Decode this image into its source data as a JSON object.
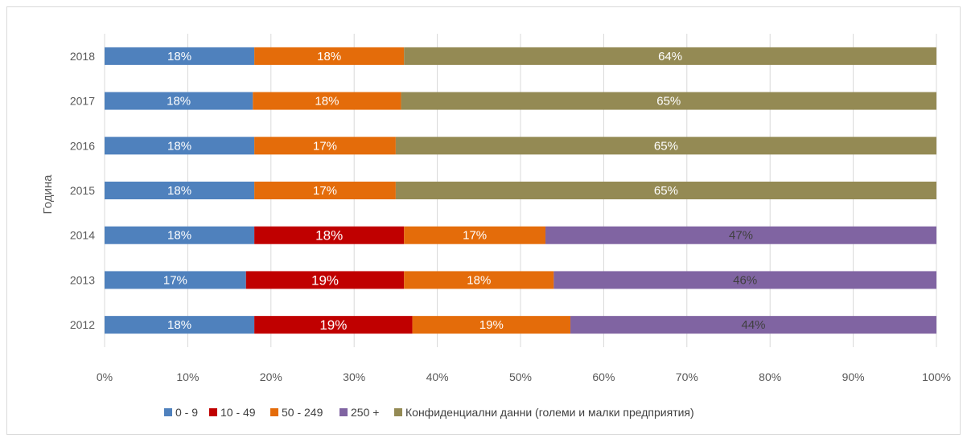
{
  "chart_data": {
    "type": "bar",
    "orientation": "horizontal",
    "stacked": "percent",
    "title": "",
    "ylabel": "Година",
    "xlabel": "",
    "categories": [
      "2018",
      "2017",
      "2016",
      "2015",
      "2014",
      "2013",
      "2012"
    ],
    "x_ticks": [
      "0%",
      "10%",
      "20%",
      "30%",
      "40%",
      "50%",
      "60%",
      "70%",
      "80%",
      "90%",
      "100%"
    ],
    "xlim": [
      0,
      100
    ],
    "grid": true,
    "legend_position": "bottom",
    "series": [
      {
        "name": "0 - 9",
        "color": "#4f81bd",
        "values": [
          18,
          18,
          18,
          18,
          18,
          17,
          18
        ],
        "labels": [
          "18%",
          "18%",
          "18%",
          "18%",
          "18%",
          "17%",
          "18%"
        ],
        "label_color": "#ffffff"
      },
      {
        "name": "10 - 49",
        "color": "#c00000",
        "values": [
          0,
          0,
          0,
          0,
          18,
          19,
          19
        ],
        "labels": [
          "",
          "",
          "",
          "",
          "18%",
          "19%",
          "19%"
        ],
        "label_color": "#ffffff"
      },
      {
        "name": "50 - 249",
        "color": "#e46c0a",
        "values": [
          18,
          18,
          17,
          17,
          17,
          18,
          19
        ],
        "labels": [
          "18%",
          "18%",
          "17%",
          "17%",
          "17%",
          "18%",
          "19%"
        ],
        "label_color": "#ffffff"
      },
      {
        "name": "250 +",
        "color": "#8064a2",
        "values": [
          0,
          0,
          0,
          0,
          47,
          46,
          44
        ],
        "labels": [
          "",
          "",
          "",
          "",
          "47%",
          "46%",
          "44%"
        ],
        "label_color": "#404040"
      },
      {
        "name": "Конфиденциални данни (големи и малки предприятия)",
        "color": "#948a54",
        "values": [
          64,
          65,
          65,
          65,
          0,
          0,
          0
        ],
        "labels": [
          "64%",
          "65%",
          "65%",
          "65%",
          "",
          "",
          ""
        ],
        "label_color": "#ffffff"
      }
    ]
  }
}
